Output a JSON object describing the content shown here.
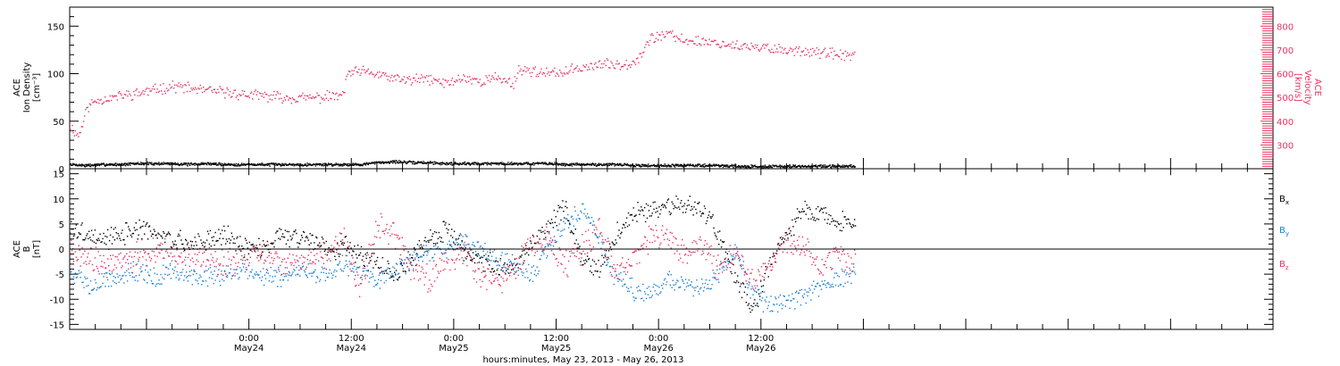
{
  "colors": {
    "black": "#000000",
    "pink": "#e8325f",
    "blue": "#1a7fd8"
  },
  "chart_data": [
    {
      "type": "scatter",
      "panel": "top",
      "ylabel_lines": [
        "ACE",
        "Ion Density",
        "[cm⁻³]"
      ],
      "ylabel2_lines": [
        "ACE",
        "Velocity",
        "[km/s]"
      ],
      "ylim": [
        0,
        170
      ],
      "y2lim": [
        200,
        880
      ],
      "yticks": [
        "0",
        "50",
        "100",
        "150"
      ],
      "y2ticks": [
        "300",
        "400",
        "500",
        "600",
        "700",
        "800"
      ],
      "series": [
        {
          "key": "density",
          "axis": "left",
          "color": "black",
          "x": [
            0,
            2,
            4,
            6,
            8,
            10,
            12,
            14,
            16,
            18,
            20,
            22,
            24,
            26,
            28,
            30,
            32,
            34,
            36,
            38,
            40,
            42,
            44,
            46,
            48,
            50,
            52,
            54,
            56,
            58,
            60,
            62,
            64,
            66,
            68,
            70,
            72,
            74,
            76,
            78,
            80,
            82,
            84,
            86,
            88,
            90,
            92
          ],
          "y": [
            5,
            4,
            5,
            5,
            6,
            6,
            6,
            5,
            6,
            5,
            5,
            5,
            5,
            5,
            5,
            5,
            5,
            5,
            7,
            8,
            7,
            7,
            6,
            6,
            6,
            6,
            6,
            6,
            6,
            5,
            5,
            5,
            5,
            4,
            4,
            4,
            4,
            4,
            4,
            3,
            3,
            3,
            3,
            3,
            3,
            3,
            3
          ]
        },
        {
          "key": "velocity",
          "axis": "right",
          "color": "pink",
          "x": [
            0,
            1,
            2,
            3,
            4,
            6,
            8,
            10,
            12,
            14,
            16,
            18,
            20,
            22,
            24,
            26,
            28,
            30,
            32,
            32.5,
            34,
            36,
            38,
            40,
            42,
            44,
            46,
            48,
            50,
            52,
            52.5,
            54,
            56,
            58,
            60,
            62,
            64,
            66,
            67,
            68,
            70,
            72,
            74,
            76,
            78,
            80,
            82,
            84,
            86,
            88,
            90,
            92
          ],
          "y": [
            380,
            340,
            460,
            490,
            495,
            510,
            520,
            535,
            550,
            540,
            530,
            525,
            515,
            510,
            505,
            500,
            500,
            505,
            510,
            605,
            610,
            600,
            580,
            575,
            580,
            560,
            585,
            570,
            585,
            560,
            620,
            615,
            600,
            610,
            630,
            640,
            640,
            650,
            690,
            750,
            770,
            740,
            740,
            730,
            720,
            710,
            710,
            700,
            700,
            690,
            680,
            680
          ]
        }
      ]
    },
    {
      "type": "scatter",
      "panel": "bottom",
      "ylabel_lines": [
        "ACE",
        "B",
        "[nT]"
      ],
      "ylim": [
        -16,
        16
      ],
      "yticks": [
        "-15",
        "-10",
        "-5",
        "0",
        "5",
        "10",
        "15"
      ],
      "series": [
        {
          "key": "bx",
          "name": "B",
          "sub": "x",
          "color": "black",
          "x": [
            0,
            2,
            4,
            6,
            8,
            10,
            12,
            14,
            16,
            18,
            20,
            22,
            24,
            26,
            28,
            30,
            31,
            32,
            34,
            36,
            38,
            40,
            42,
            44,
            46,
            48,
            50,
            52,
            54,
            56,
            58,
            60,
            62,
            64,
            66,
            68,
            70,
            72,
            74,
            76,
            78,
            80,
            82,
            84,
            86,
            88,
            90,
            92
          ],
          "y": [
            4,
            3,
            2,
            3,
            4,
            3,
            2,
            1,
            2,
            3,
            1,
            0,
            2,
            3,
            2,
            1,
            0,
            1,
            -1,
            -3,
            -5,
            -2,
            2,
            4,
            0,
            -2,
            -3,
            -4,
            1,
            5,
            8,
            -2,
            -4,
            3,
            7,
            8,
            9,
            9,
            8,
            3,
            -5,
            -12,
            -3,
            3,
            8,
            7,
            6,
            5
          ]
        },
        {
          "key": "by",
          "name": "B",
          "sub": "y",
          "color": "blue",
          "x": [
            0,
            2,
            4,
            6,
            8,
            10,
            12,
            14,
            16,
            18,
            20,
            22,
            24,
            26,
            28,
            30,
            32,
            34,
            36,
            38,
            40,
            42,
            44,
            46,
            48,
            50,
            52,
            54,
            56,
            58,
            60,
            62,
            64,
            66,
            68,
            70,
            72,
            74,
            76,
            78,
            80,
            82,
            84,
            86,
            88,
            90,
            92
          ],
          "y": [
            -4,
            -7,
            -6,
            -5,
            -4,
            -6,
            -4,
            -5,
            -6,
            -5,
            -4,
            -5,
            -6,
            -5,
            -4,
            -5,
            -3,
            -4,
            -6,
            -4,
            -2,
            -1,
            0,
            2,
            0,
            -2,
            -3,
            -5,
            0,
            5,
            8,
            2,
            -6,
            -8,
            -9,
            -6,
            -7,
            -8,
            -5,
            0,
            -9,
            -11,
            -10,
            -9,
            -7,
            -6,
            -5
          ]
        },
        {
          "key": "bz",
          "name": "B",
          "sub": "z",
          "color": "pink",
          "x": [
            0,
            2,
            4,
            6,
            8,
            10,
            12,
            14,
            16,
            18,
            20,
            22,
            24,
            26,
            28,
            30,
            32,
            34,
            36,
            38,
            40,
            42,
            44,
            46,
            48,
            50,
            52,
            54,
            56,
            58,
            60,
            62,
            64,
            66,
            68,
            70,
            72,
            74,
            76,
            78,
            80,
            82,
            84,
            86,
            88,
            90,
            92
          ],
          "y": [
            1,
            -2,
            -3,
            -2,
            -1,
            0,
            -1,
            -2,
            -1,
            -3,
            -2,
            -1,
            -2,
            -3,
            -2,
            -1,
            2,
            -8,
            5,
            3,
            -4,
            -6,
            -3,
            0,
            -5,
            -6,
            -4,
            1,
            2,
            -3,
            0,
            4,
            -5,
            -2,
            3,
            2,
            -1,
            1,
            -4,
            0,
            -6,
            -3,
            2,
            0,
            -4,
            -1,
            -2
          ]
        }
      ]
    }
  ],
  "xaxis": {
    "ticks": [
      {
        "time": "0:00",
        "date": "May24"
      },
      {
        "time": "12:00",
        "date": "May24"
      },
      {
        "time": "0:00",
        "date": "May25"
      },
      {
        "time": "12:00",
        "date": "May25"
      },
      {
        "time": "0:00",
        "date": "May26"
      },
      {
        "time": "12:00",
        "date": "May26"
      }
    ],
    "title": "hours:minutes, May 23, 2013 - May 26, 2013"
  }
}
